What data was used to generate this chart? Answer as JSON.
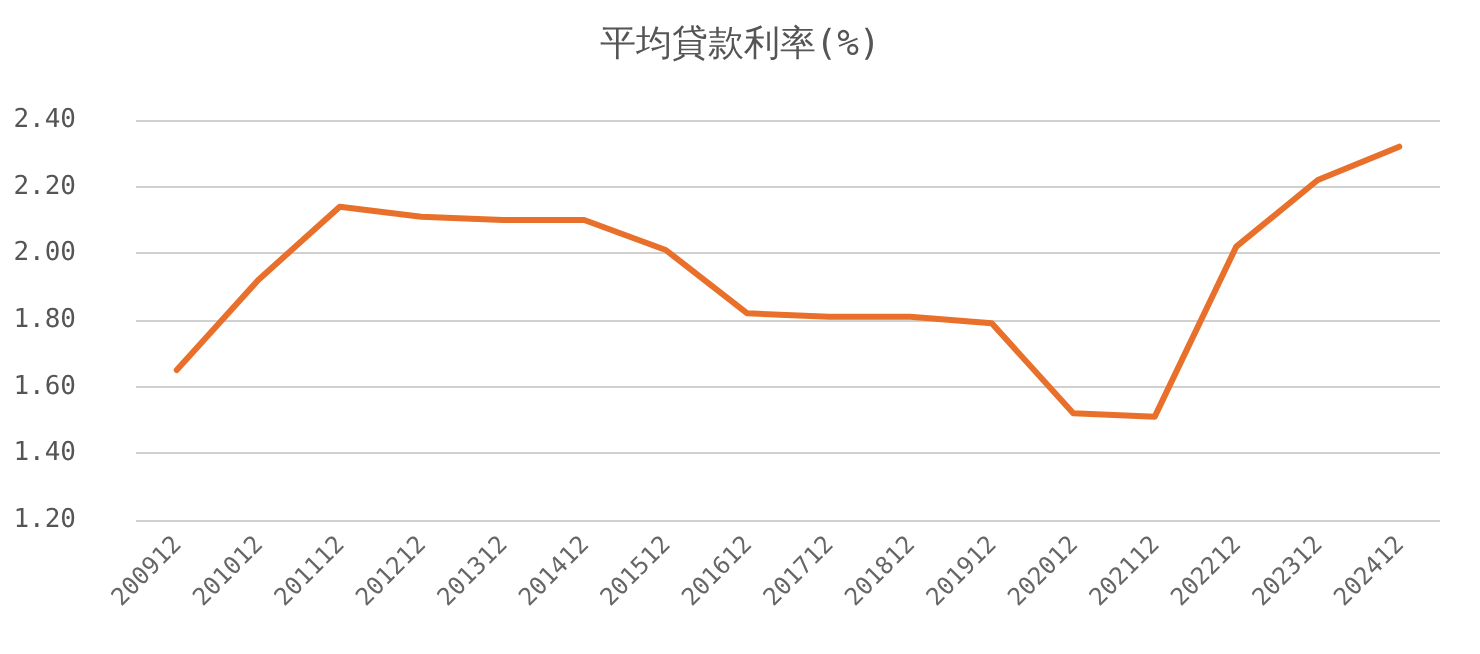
{
  "chart_data": {
    "type": "line",
    "title": "平均貸款利率(%)",
    "categories": [
      "200912",
      "201012",
      "201112",
      "201212",
      "201312",
      "201412",
      "201512",
      "201612",
      "201712",
      "201812",
      "201912",
      "202012",
      "202112",
      "202212",
      "202312",
      "202412"
    ],
    "series": [
      {
        "color": "#e8702a",
        "values": [
          1.65,
          1.92,
          2.14,
          2.11,
          2.1,
          2.1,
          2.01,
          1.82,
          1.81,
          1.81,
          1.79,
          1.52,
          1.51,
          2.02,
          2.22,
          2.32
        ]
      }
    ],
    "ylim": [
      1.2,
      2.4
    ],
    "yticks": [
      {
        "value": 1.2,
        "label": "1.20"
      },
      {
        "value": 1.4,
        "label": "1.40"
      },
      {
        "value": 1.6,
        "label": "1.60"
      },
      {
        "value": 1.8,
        "label": "1.80"
      },
      {
        "value": 2.0,
        "label": "2.00"
      },
      {
        "value": 2.2,
        "label": "2.20"
      },
      {
        "value": 2.4,
        "label": "2.40"
      }
    ],
    "grid": "y",
    "marker": "none",
    "line_style": "solid"
  }
}
